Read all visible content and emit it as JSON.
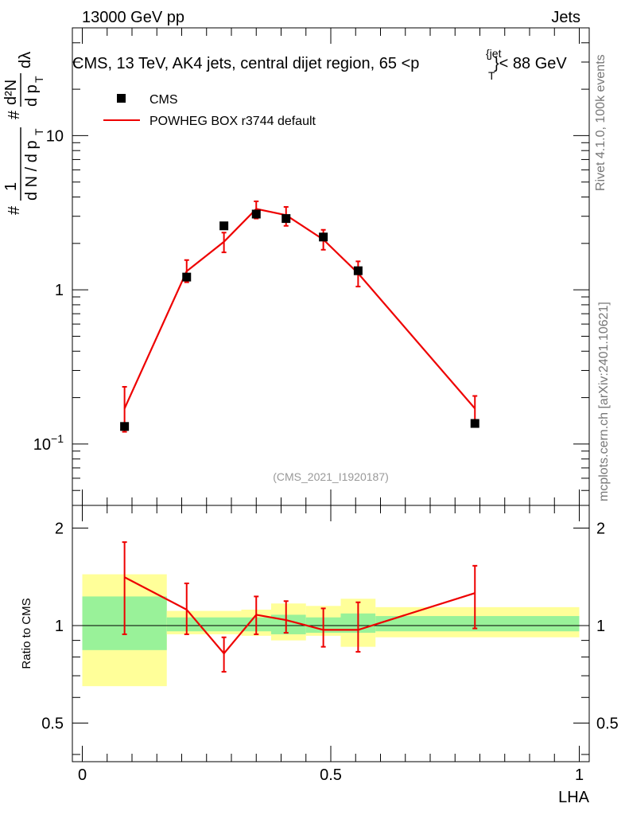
{
  "header": {
    "left": "13000 GeV pp",
    "right": "Jets"
  },
  "side_labels": {
    "top": "Rivet 4.1.0,  100k events",
    "bottom": "mcplots.cern.ch [arXiv:2401.10621]"
  },
  "colors": {
    "data": "#000000",
    "mc": "#ee0000",
    "band_inner": "#99f299",
    "band_outer": "#ffff99"
  },
  "chart_data": [
    {
      "type": "scatter",
      "title_parts": {
        "before": "CMS, 13 TeV, AK4 jets, central dijet region, 65 <p",
        "sup": "{jet",
        "sub": "T",
        "after": "}< 88 GeV"
      },
      "watermark": "(CMS_2021_I1920187)",
      "xlabel": "LHA",
      "ylabel": {
        "prefix": "#",
        "den1": "d N / d p",
        "den1_sub": "T",
        "frac_num": "d²N",
        "frac_den": "d p",
        "frac_den_sub": "T",
        "tail": "dλ"
      },
      "xlim": [
        -0.02,
        1.02
      ],
      "ylim": [
        0.04,
        50
      ],
      "yscale": "log",
      "y_ticks": [
        {
          "value": 0.1,
          "base": "10",
          "exp": "−1"
        },
        {
          "value": 1,
          "base": "1",
          "exp": ""
        },
        {
          "value": 10,
          "base": "10",
          "exp": ""
        }
      ],
      "x_ticks": [
        0,
        0.5,
        1
      ],
      "legend": {
        "position": "top-left",
        "entries": [
          {
            "label": "CMS",
            "kind": "marker"
          },
          {
            "label": "POWHEG BOX r3744 default",
            "kind": "line"
          }
        ]
      },
      "series": [
        {
          "name": "CMS",
          "x": [
            0.085,
            0.21,
            0.285,
            0.35,
            0.41,
            0.485,
            0.555,
            0.79
          ],
          "y": [
            0.13,
            1.21,
            2.6,
            3.1,
            2.9,
            2.2,
            1.33,
            0.136
          ]
        },
        {
          "name": "POWHEG BOX r3744 default",
          "x": [
            0.085,
            0.21,
            0.285,
            0.35,
            0.41,
            0.485,
            0.555,
            0.79
          ],
          "y": [
            0.17,
            1.32,
            2.05,
            3.35,
            3.05,
            2.12,
            1.28,
            0.17
          ],
          "y_lo": [
            0.12,
            1.12,
            1.75,
            2.9,
            2.6,
            1.82,
            1.05,
            0.135
          ],
          "y_hi": [
            0.235,
            1.56,
            2.35,
            3.75,
            3.45,
            2.45,
            1.53,
            0.205
          ]
        }
      ]
    },
    {
      "type": "line",
      "ylabel": "Ratio to CMS",
      "xlabel": "LHA",
      "xlim": [
        -0.02,
        1.02
      ],
      "ylim": [
        0.38,
        2.35
      ],
      "yscale": "log",
      "y_ticks": [
        {
          "value": 0.5,
          "label": "0.5"
        },
        {
          "value": 1,
          "label": "1"
        },
        {
          "value": 2,
          "label": "2"
        }
      ],
      "x_ticks": [
        {
          "value": 0,
          "label": "0"
        },
        {
          "value": 0.5,
          "label": "0.5"
        },
        {
          "value": 1,
          "label": "1"
        }
      ],
      "bands": [
        {
          "x0": 0.0,
          "x1": 0.17,
          "inner": [
            0.84,
            1.23
          ],
          "outer": [
            0.65,
            1.44
          ]
        },
        {
          "x0": 0.17,
          "x1": 0.32,
          "inner": [
            0.96,
            1.06
          ],
          "outer": [
            0.94,
            1.11
          ]
        },
        {
          "x0": 0.32,
          "x1": 0.38,
          "inner": [
            0.96,
            1.06
          ],
          "outer": [
            0.93,
            1.12
          ]
        },
        {
          "x0": 0.38,
          "x1": 0.45,
          "inner": [
            0.94,
            1.08
          ],
          "outer": [
            0.9,
            1.17
          ]
        },
        {
          "x0": 0.45,
          "x1": 0.52,
          "inner": [
            0.95,
            1.06
          ],
          "outer": [
            0.93,
            1.15
          ]
        },
        {
          "x0": 0.52,
          "x1": 0.59,
          "inner": [
            0.95,
            1.09
          ],
          "outer": [
            0.86,
            1.21
          ]
        },
        {
          "x0": 0.59,
          "x1": 1.0,
          "inner": [
            0.96,
            1.07
          ],
          "outer": [
            0.92,
            1.14
          ]
        }
      ],
      "series": [
        {
          "name": "POWHEG BOX r3744 default",
          "x": [
            0.085,
            0.21,
            0.285,
            0.35,
            0.41,
            0.485,
            0.555,
            0.79
          ],
          "y": [
            1.41,
            1.12,
            0.82,
            1.08,
            1.04,
            0.97,
            0.97,
            1.26
          ],
          "y_lo": [
            0.94,
            0.94,
            0.72,
            0.94,
            0.95,
            0.86,
            0.83,
            0.98
          ],
          "y_hi": [
            1.81,
            1.35,
            0.92,
            1.23,
            1.19,
            1.13,
            1.18,
            1.53
          ]
        }
      ]
    }
  ]
}
